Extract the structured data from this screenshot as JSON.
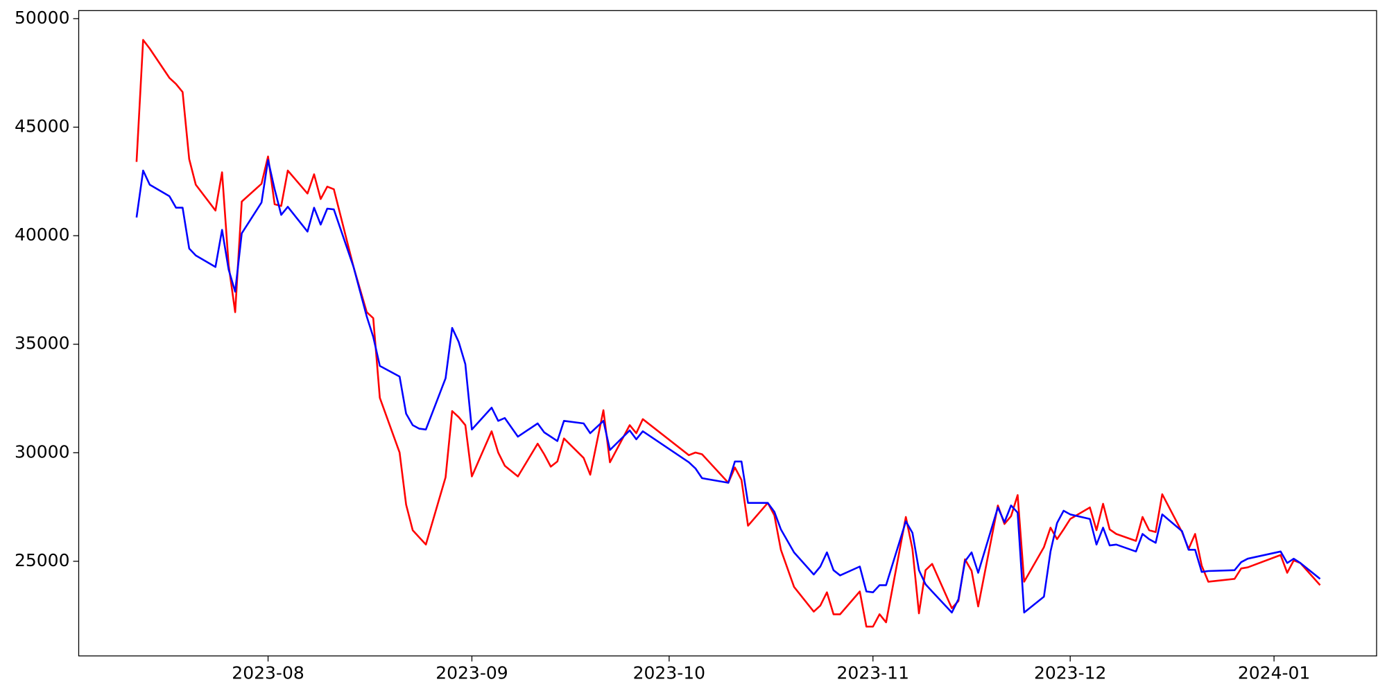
{
  "chart_data": {
    "type": "line",
    "x": [
      -20,
      -19,
      -18,
      -15,
      -14,
      -13,
      -12,
      -11,
      -8,
      -7,
      -6,
      -5,
      -4,
      -1,
      0,
      1,
      2,
      3,
      6,
      7,
      8,
      9,
      10,
      13,
      15,
      16,
      17,
      20,
      21,
      22,
      23,
      24,
      27,
      28,
      29,
      30,
      31,
      34,
      35,
      36,
      38,
      41,
      42,
      43,
      44,
      45,
      48,
      49,
      51,
      52,
      55,
      56,
      57,
      64,
      65,
      66,
      70,
      71,
      72,
      73,
      76,
      77,
      78,
      80,
      83,
      84,
      85,
      86,
      87,
      90,
      91,
      92,
      93,
      94,
      97,
      98,
      99,
      100,
      101,
      104,
      105,
      106,
      107,
      108,
      111,
      112,
      113,
      114,
      115,
      118,
      119,
      120,
      121,
      122,
      125,
      126,
      127,
      128,
      129,
      132,
      133,
      134,
      135,
      136,
      139,
      140,
      141,
      142,
      143,
      147,
      148,
      149,
      154,
      155,
      156,
      157,
      160
    ],
    "series": [
      {
        "color": "#ff0000",
        "values": [
          43400,
          49020,
          48620,
          47270,
          46990,
          46620,
          43530,
          42350,
          41160,
          42920,
          38640,
          36480,
          41570,
          42390,
          43650,
          41450,
          41370,
          43000,
          41940,
          42830,
          41690,
          42260,
          42140,
          38560,
          36480,
          36200,
          32530,
          30010,
          27610,
          26430,
          26100,
          25770,
          28870,
          31920,
          31640,
          31270,
          28910,
          30990,
          30010,
          29400,
          28910,
          30420,
          29930,
          29360,
          29600,
          30660,
          29760,
          28990,
          31960,
          29560,
          31270,
          30900,
          31550,
          29890,
          30010,
          29930,
          28620,
          29320,
          28750,
          26640,
          27690,
          27120,
          25530,
          23820,
          22680,
          22960,
          23570,
          22560,
          22560,
          23610,
          21990,
          21990,
          22560,
          22190,
          27040,
          25570,
          22600,
          24590,
          24880,
          22840,
          23170,
          25090,
          24560,
          22920,
          27570,
          26720,
          27080,
          28050,
          24060,
          25650,
          26550,
          26020,
          26470,
          26950,
          27480,
          26430,
          27650,
          26470,
          26260,
          25940,
          27040,
          26430,
          26350,
          28090,
          26350,
          25570,
          26260,
          24800,
          24060,
          24190,
          24670,
          24720,
          25290,
          24470,
          25040,
          24920,
          23900
        ]
      },
      {
        "color": "#0000ff",
        "values": [
          40840,
          43000,
          42350,
          41820,
          41290,
          41290,
          39410,
          39090,
          38560,
          40270,
          38440,
          37420,
          40110,
          41530,
          43490,
          42140,
          40960,
          41330,
          40190,
          41290,
          40510,
          41250,
          41210,
          38560,
          36280,
          35340,
          34000,
          33510,
          31800,
          31270,
          31110,
          31070,
          33430,
          35750,
          35100,
          34080,
          31070,
          32080,
          31470,
          31600,
          30740,
          31350,
          30940,
          30740,
          30540,
          31470,
          31350,
          30900,
          31470,
          30130,
          31030,
          30620,
          30990,
          29560,
          29280,
          28830,
          28620,
          29600,
          29600,
          27690,
          27690,
          27280,
          26470,
          25410,
          24390,
          24760,
          25410,
          24590,
          24350,
          24760,
          23610,
          23570,
          23900,
          23900,
          26840,
          26310,
          24590,
          23940,
          23610,
          22640,
          23250,
          25000,
          25410,
          24470,
          27480,
          26800,
          27570,
          27240,
          22640,
          23370,
          25450,
          26760,
          27330,
          27160,
          26950,
          25770,
          26550,
          25730,
          25770,
          25450,
          26260,
          26020,
          25850,
          27160,
          26390,
          25530,
          25530,
          24510,
          24550,
          24590,
          24960,
          25120,
          25450,
          24920,
          25120,
          24920,
          24190
        ]
      }
    ],
    "xlim": [
      -28.8,
      168.6
    ],
    "xticks": [
      {
        "value": 0,
        "label": "2023-08"
      },
      {
        "value": 31,
        "label": "2023-09"
      },
      {
        "value": 61,
        "label": "2023-10"
      },
      {
        "value": 92,
        "label": "2023-11"
      },
      {
        "value": 122,
        "label": "2023-12"
      },
      {
        "value": 153,
        "label": "2024-01"
      }
    ],
    "ylim": [
      20640,
      50370
    ],
    "yticks": [
      25000,
      30000,
      35000,
      40000,
      45000,
      50000
    ],
    "grid": false
  }
}
